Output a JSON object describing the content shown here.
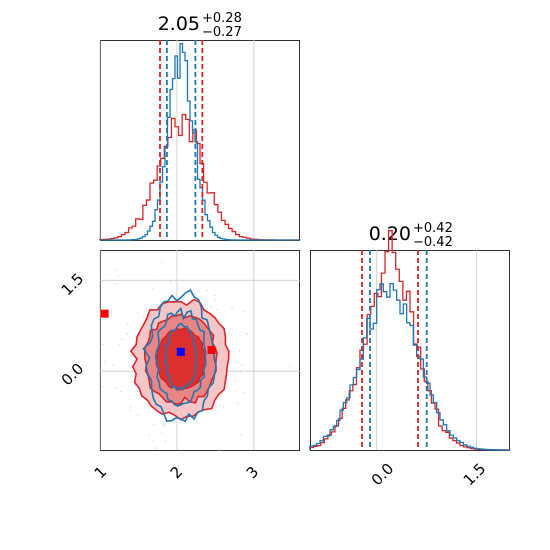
{
  "colors": {
    "red": "#d62728",
    "blue": "#1f77b4",
    "marker_red": "#ff0000",
    "marker_blue": "#0000ff",
    "grid": "#cccccc",
    "fill_light": "#f6c6c6",
    "fill_mid": "#ea8585",
    "fill_dark": "#dc3030"
  },
  "chart_data": [
    {
      "type": "histogram",
      "panel": "marginal-x",
      "title": {
        "main": "2.05",
        "sup": "+0.28",
        "sub": "−0.27"
      },
      "xlim": [
        1.0,
        3.6
      ],
      "median": 2.05,
      "series": [
        {
          "name": "",
          "color": "red",
          "quantiles": [
            1.78,
            2.33
          ],
          "sigma": 0.3,
          "peak": 0.6
        },
        {
          "name": "",
          "color": "blue",
          "quantiles": [
            1.87,
            2.24
          ],
          "sigma": 0.17,
          "peak": 0.92
        }
      ],
      "grid": true
    },
    {
      "type": "histogram",
      "panel": "marginal-y",
      "title": {
        "main": "0.20",
        "sup": "+0.42",
        "sub": "−0.42"
      },
      "xlim": [
        -1.0,
        2.0
      ],
      "median": 0.2,
      "xticks": [
        "0.0",
        "1.5"
      ],
      "series": [
        {
          "name": "",
          "color": "red",
          "quantiles": [
            -0.22,
            0.62
          ],
          "sigma": 0.4,
          "peak": 0.88
        },
        {
          "name": "",
          "color": "blue",
          "quantiles": [
            -0.1,
            0.75
          ],
          "sigma": 0.43,
          "peak": 0.78
        }
      ],
      "grid": true
    },
    {
      "type": "contour",
      "panel": "joint",
      "xlim": [
        1.0,
        3.6
      ],
      "ylim": [
        -1.3,
        2.0
      ],
      "xticks": [
        "1",
        "2",
        "3"
      ],
      "yticks": [
        "1.5",
        "0.0"
      ],
      "red_contours": [
        {
          "cx": 2.05,
          "cy": 0.2,
          "rx": 0.62,
          "ry": 0.96
        },
        {
          "cx": 2.05,
          "cy": 0.2,
          "rx": 0.47,
          "ry": 0.74
        },
        {
          "cx": 2.05,
          "cy": 0.2,
          "rx": 0.31,
          "ry": 0.5
        }
      ],
      "blue_contours": [
        {
          "cx": 2.05,
          "cy": 0.22,
          "rx": 0.44,
          "ry": 1.05
        },
        {
          "cx": 2.05,
          "cy": 0.22,
          "rx": 0.32,
          "ry": 0.78
        },
        {
          "cx": 2.05,
          "cy": 0.22,
          "rx": 0.2,
          "ry": 0.52
        }
      ],
      "markers": [
        {
          "color": "marker_red",
          "x": 1.06,
          "y": 0.95
        },
        {
          "color": "marker_red",
          "x": 2.45,
          "y": 0.35
        },
        {
          "color": "marker_blue",
          "x": 2.05,
          "y": 0.32
        }
      ],
      "grid": true
    }
  ]
}
